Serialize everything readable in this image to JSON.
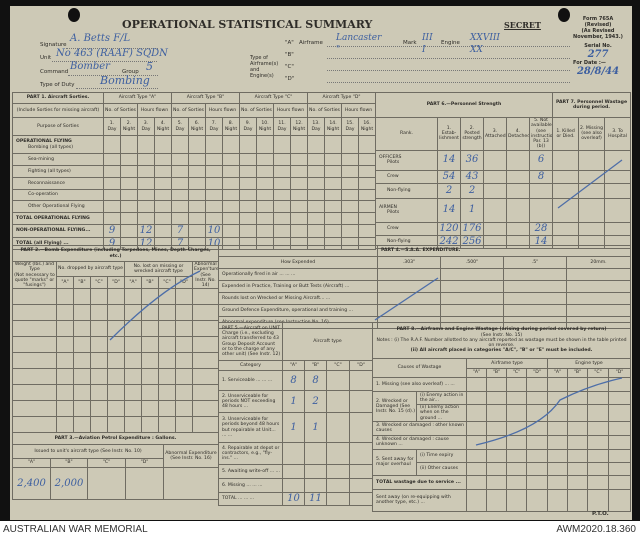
{
  "header": {
    "title": "OPERATIONAL STATISTICAL SUMMARY",
    "classification": "SECRET",
    "form_no": "Form 765A",
    "form_revised": "(Revised)",
    "form_revision_note": "(As Revised November, 1943.)",
    "serial_label": "Serial No.",
    "serial_value": "277",
    "date_label": "For Date :—",
    "date_value": "28/8/44",
    "signature_label": "Signature",
    "signature_value": "A. Betts F/L",
    "unit_label": "Unit",
    "unit_value": "No 463 (RAAF) SQDN",
    "command_label": "Command",
    "command_value": "Bomber",
    "group_label": "Group",
    "group_value": "5",
    "duty_label": "Type of Duty",
    "duty_value": "Bombing",
    "type_label": "Type of Airframe(s) and Engine(s)",
    "airframe_label": "Airframe",
    "mark_label": "Mark",
    "engine_label": "Engine",
    "types": [
      {
        "code": "\"A\"",
        "airframe": "Lancaster",
        "mark": "III",
        "engine": "XXVIII"
      },
      {
        "code": "\"B\"",
        "airframe": "\"",
        "mark": "I",
        "engine": "XX"
      },
      {
        "code": "\"C\"",
        "airframe": "",
        "mark": "",
        "engine": ""
      },
      {
        "code": "\"D\"",
        "airframe": "",
        "mark": "",
        "engine": ""
      }
    ]
  },
  "part1": {
    "title": "PART 1. Aircraft Sorties.",
    "note": "(Include Sorties for missing aircraft)",
    "purpose_header": "Purpose of Sorties",
    "aircraft_types": [
      "Aircraft Type \"A\"",
      "Aircraft Type \"B\"",
      "Aircraft Type \"C\"",
      "Aircraft Type \"D\""
    ],
    "sub_headers": [
      "No. of Sorties",
      "Hours flown"
    ],
    "columns": [
      "1. Day",
      "2. Night",
      "3. Day",
      "4. Night",
      "5. Day",
      "6. Night",
      "7. Day",
      "8. Night",
      "9. Day",
      "10. Night",
      "11. Day",
      "12. Night",
      "13. Day",
      "14. Night",
      "15. Day",
      "16. Night"
    ],
    "rows": [
      {
        "label": "OPERATIONAL FLYING",
        "sublabel": "Bombing (all types)",
        "values": [
          "",
          "",
          "",
          "",
          "",
          "",
          "",
          "",
          "",
          "",
          "",
          "",
          "",
          "",
          "",
          ""
        ]
      },
      {
        "label": "",
        "sublabel": "Sea-mining",
        "values": [
          "",
          "",
          "",
          "",
          "",
          "",
          "",
          "",
          "",
          "",
          "",
          "",
          "",
          "",
          "",
          ""
        ]
      },
      {
        "label": "",
        "sublabel": "Fighting (all types)",
        "values": [
          "",
          "",
          "",
          "",
          "",
          "",
          "",
          "",
          "",
          "",
          "",
          "",
          "",
          "",
          "",
          ""
        ]
      },
      {
        "label": "",
        "sublabel": "Reconnaissance",
        "values": [
          "",
          "",
          "",
          "",
          "",
          "",
          "",
          "",
          "",
          "",
          "",
          "",
          "",
          "",
          "",
          ""
        ]
      },
      {
        "label": "",
        "sublabel": "Co-operation",
        "values": [
          "",
          "",
          "",
          "",
          "",
          "",
          "",
          "",
          "",
          "",
          "",
          "",
          "",
          "",
          "",
          ""
        ]
      },
      {
        "label": "",
        "sublabel": "Other Operational Flying",
        "values": [
          "",
          "",
          "",
          "",
          "",
          "",
          "",
          "",
          "",
          "",
          "",
          "",
          "",
          "",
          "",
          ""
        ]
      },
      {
        "label": "TOTAL OPERATIONAL FLYING",
        "sublabel": "",
        "values": [
          "",
          "",
          "",
          "",
          "",
          "",
          "",
          "",
          "",
          "",
          "",
          "",
          "",
          "",
          "",
          ""
        ]
      },
      {
        "label": "NON-OPERATIONAL FLYING...",
        "sublabel": "",
        "values": [
          "9",
          "",
          "12",
          "",
          "7",
          "",
          "10",
          "",
          "",
          "",
          "",
          "",
          "",
          "",
          "",
          ""
        ]
      },
      {
        "label": "TOTAL (all Flying) ...",
        "sublabel": "",
        "values": [
          "9",
          "",
          "12",
          "",
          "7",
          "",
          "10",
          "",
          "",
          "",
          "",
          "",
          "",
          "",
          "",
          ""
        ]
      }
    ]
  },
  "part6": {
    "title": "PART 6.—Personnel Strength",
    "rank_header": "Rank.",
    "columns": [
      "1. Estab-lishment",
      "2. Posted strength",
      "3. Attached",
      "4. Detached",
      "5. Not available (see instructions Par. 13 (b))"
    ],
    "rows": [
      {
        "group": "OFFICERS",
        "label": "Pilots",
        "values": [
          "14",
          "36",
          "",
          "",
          "6"
        ]
      },
      {
        "group": "",
        "label": "Crew",
        "values": [
          "54",
          "43",
          "",
          "",
          "8"
        ]
      },
      {
        "group": "",
        "label": "Non-flying",
        "values": [
          "2",
          "2",
          "",
          "",
          ""
        ]
      },
      {
        "group": "AIRMEN",
        "label": "Pilots",
        "values": [
          "14",
          "1",
          "",
          "",
          ""
        ]
      },
      {
        "group": "",
        "label": "Crew",
        "values": [
          "120",
          "176",
          "",
          "",
          "28"
        ]
      },
      {
        "group": "",
        "label": "Non-flying",
        "values": [
          "242",
          "256",
          "",
          "",
          "14"
        ]
      }
    ]
  },
  "part7": {
    "title": "PART 7. Personnel Wastage during period.",
    "columns": [
      "1. Killed or Died.",
      "2. Missing (see also overleaf)",
      "3. To Hospital"
    ]
  },
  "part2": {
    "title": "PART 2.—Bomb Expenditure (including Torpedoes, Mines, Depth-Charges, etc.)",
    "weight_header": "Weight (lbs.) and Type",
    "weight_note": "(Not necessary to quote \"marks\" or \"fusings\")",
    "dropped_header": "No. dropped by aircraft type",
    "lost_header": "No. lost on missing or wrecked aircraft type",
    "abnormal_header": "Abnormal Expen'ture (See Instr. No. 14)",
    "type_codes": [
      "\"A\"",
      "\"B\"",
      "\"C\"",
      "\"D\""
    ]
  },
  "part4": {
    "title": "PART 4.—S.A.A. EXPENDITURE.",
    "how_header": "How Expended",
    "calibres": [
      ".303\"",
      ".500\"",
      ".5\"",
      "20mm."
    ],
    "rows": [
      "Operationally fired in air ... ... ...",
      "Expended in Practice, Training or Butt Tests (Aircraft) ...",
      "Rounds lost on Wrecked or Missing Aircraft... ...",
      "Ground Defence Expenditure, operational and training ...",
      "Abnormal expenditure (see Instruction No. 16) ..."
    ]
  },
  "part5": {
    "title": "PART 5.—Aircraft on UNIT Charge (i.e., excluding aircraft transferred to 43 Group Deposit Account or to the charge of any other unit) (See Instr. 12)",
    "aircraft_type_header": "Aircraft type",
    "category_header": "Category",
    "type_codes": [
      "\"A\"",
      "\"B\"",
      "\"C\"",
      "\"D\""
    ],
    "rows": [
      {
        "label": "1. Serviceable ... ... ...",
        "values": [
          "8",
          "8",
          "",
          ""
        ]
      },
      {
        "label": "2. Unserviceable for periods NOT exceeding 48 hours ...",
        "values": [
          "1",
          "2",
          "",
          ""
        ]
      },
      {
        "label": "3. Unserviceable for periods beyond 48 hours but repairable at Unit... ... ...",
        "values": [
          "1",
          "1",
          "",
          ""
        ]
      },
      {
        "label": "4. Repairable at depot or contractors, e.g., \"fly-ins.\" ...",
        "values": [
          "",
          "",
          "",
          ""
        ]
      },
      {
        "label": "5. Awaiting write-off ... ...",
        "values": [
          "",
          "",
          "",
          ""
        ]
      },
      {
        "label": "6. Missing ... ... ...",
        "values": [
          "",
          "",
          "",
          ""
        ]
      },
      {
        "label": "TOTAL ... ... ...",
        "values": [
          "10",
          "11",
          "",
          ""
        ]
      }
    ]
  },
  "part8": {
    "title": "PART 8.—Airframe and Engine Wastage (arising during period covered by return)",
    "instr": "(See Instr. No. 15)",
    "note1": "Notes : (i) The R.A.F. Number allotted to any aircraft reported as wastage must be shown in the table printed on reverse.",
    "note2": "(ii) All aircraft placed in categories \"A/C\", \"B\" or \"E\" must be included.",
    "causes_header": "Causes of Wastage",
    "airframe_header": "Airframe type",
    "engine_header": "Engine type",
    "type_codes": [
      "\"A\"",
      "\"B\"",
      "\"C\"",
      "\"D\"",
      "\"A\"",
      "\"B\"",
      "\"C\"",
      "\"D\""
    ],
    "rows": [
      {
        "main": "1. Missing (see also overleaf) ... ...",
        "sub": ""
      },
      {
        "main": "2. Wrecked or Damaged (See Instr. No. 15 (d).)",
        "sub": "(i) Enemy action in the air..."
      },
      {
        "main": "",
        "sub": "(ii) Enemy action when on the ground ..."
      },
      {
        "main": "3. Wrecked or damaged : other known causes",
        "sub": ""
      },
      {
        "main": "4. Wrecked or damaged : cause unknown ...",
        "sub": ""
      },
      {
        "main": "5. Sent away for major overhaul",
        "sub": "(i) Time expiry"
      },
      {
        "main": "",
        "sub": "(ii) Other causes"
      },
      {
        "main": "TOTAL wastage due to service ...",
        "sub": ""
      },
      {
        "main": "Sent away (on re-equipping with another type, etc.) ...",
        "sub": ""
      }
    ],
    "pto": "P.T.O."
  },
  "part3": {
    "title": "PART 3.—Aviation Petrol Expenditure : Gallons.",
    "issued_header": "Issued to unit's aircraft type (See Instr. No. 10)",
    "abnormal_header": "Abnormal Expenditure (See Instr. No. 16)",
    "type_codes": [
      "\"A\"",
      "\"B\"",
      "\"C\"",
      "\"D\""
    ],
    "values": [
      "2,400",
      "2,000",
      "",
      ""
    ]
  },
  "footer": {
    "left": "AUSTRALIAN WAR MEMORIAL",
    "right": "AWM2020.18.360"
  },
  "colors": {
    "ink": "#3d5fa0",
    "paper": "#cdc9b6"
  }
}
